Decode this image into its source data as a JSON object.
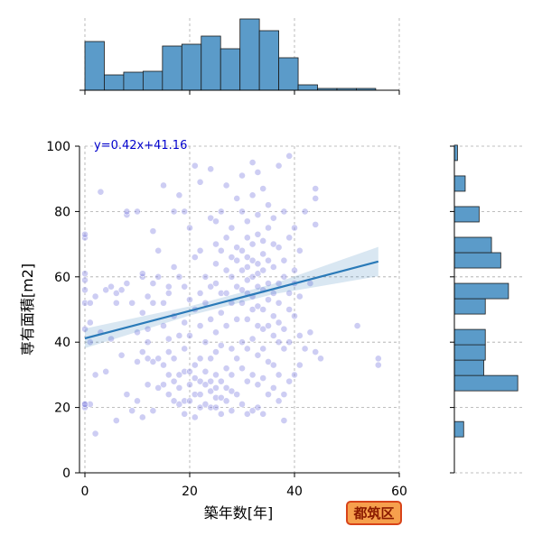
{
  "chart_data": {
    "type": "scatter",
    "subtype": "joint-plot-with-marginal-histograms-and-regression",
    "xlabel": "築年数[年]",
    "ylabel": "専有面積[m2]",
    "xlim": [
      0,
      60
    ],
    "ylim": [
      0,
      100
    ],
    "x_ticks": [
      0,
      20,
      40,
      60
    ],
    "y_ticks": [
      0,
      20,
      40,
      60,
      80,
      100
    ],
    "grid": true,
    "regression": {
      "slope": 0.42,
      "intercept": 41.16,
      "x_range": [
        0,
        56
      ],
      "label": "y=0.42x+41.16"
    },
    "badge": "都筑区",
    "scatter_color": "#7b7be0",
    "regression_color": "#2a7ab8",
    "hist_color": "#5b9bc9",
    "x_hist": {
      "bin_edges": [
        0,
        3.7,
        7.4,
        11.1,
        14.8,
        18.5,
        22.2,
        25.9,
        29.6,
        33.3,
        37.0,
        40.7,
        44.4,
        48.1,
        51.8,
        55.5
      ],
      "counts": [
        54,
        17,
        20,
        21,
        49,
        51,
        60,
        46,
        79,
        66,
        36,
        6,
        2,
        2,
        2
      ],
      "ylim": [
        0,
        80
      ]
    },
    "y_hist": {
      "bin_edges": [
        11,
        15.7,
        20.4,
        25.1,
        29.8,
        34.5,
        39.2,
        43.9,
        48.6,
        53.3,
        58.0,
        62.7,
        67.4,
        72.1,
        76.8,
        81.5,
        86.2,
        90.9,
        95.6,
        100.3
      ],
      "counts": [
        6,
        0,
        0,
        41,
        19,
        20,
        20,
        0,
        20,
        35,
        0,
        30,
        24,
        0,
        16,
        0,
        7,
        0,
        2
      ],
      "xlim": [
        0,
        45
      ]
    },
    "points": [
      [
        0,
        21
      ],
      [
        1,
        21
      ],
      [
        0,
        20
      ],
      [
        0,
        21
      ],
      [
        0,
        44
      ],
      [
        0,
        52
      ],
      [
        0,
        56
      ],
      [
        0,
        59
      ],
      [
        0,
        61
      ],
      [
        0,
        72
      ],
      [
        0,
        73
      ],
      [
        1,
        46
      ],
      [
        1,
        52
      ],
      [
        1,
        40
      ],
      [
        2,
        12
      ],
      [
        2,
        30
      ],
      [
        2,
        54
      ],
      [
        3,
        43
      ],
      [
        3,
        86
      ],
      [
        4,
        31
      ],
      [
        4,
        56
      ],
      [
        5,
        41
      ],
      [
        5,
        57
      ],
      [
        6,
        16
      ],
      [
        6,
        52
      ],
      [
        6,
        55
      ],
      [
        7,
        56
      ],
      [
        7,
        36
      ],
      [
        8,
        58
      ],
      [
        8,
        24
      ],
      [
        8,
        79
      ],
      [
        8,
        80
      ],
      [
        9,
        52
      ],
      [
        9,
        19
      ],
      [
        10,
        22
      ],
      [
        10,
        34
      ],
      [
        10,
        43
      ],
      [
        10,
        80
      ],
      [
        11,
        17
      ],
      [
        11,
        37
      ],
      [
        11,
        49
      ],
      [
        11,
        60
      ],
      [
        11,
        61
      ],
      [
        12,
        27
      ],
      [
        12,
        35
      ],
      [
        12,
        40
      ],
      [
        12,
        44
      ],
      [
        12,
        54
      ],
      [
        13,
        19
      ],
      [
        13,
        34
      ],
      [
        13,
        52
      ],
      [
        13,
        58
      ],
      [
        13,
        74
      ],
      [
        14,
        35
      ],
      [
        14,
        60
      ],
      [
        14,
        26
      ],
      [
        14,
        68
      ],
      [
        15,
        27
      ],
      [
        15,
        33
      ],
      [
        15,
        88
      ],
      [
        15,
        45
      ],
      [
        15,
        52
      ],
      [
        16,
        37
      ],
      [
        16,
        24
      ],
      [
        16,
        30
      ],
      [
        16,
        41
      ],
      [
        16,
        55
      ],
      [
        16,
        57
      ],
      [
        17,
        22
      ],
      [
        17,
        28
      ],
      [
        17,
        35
      ],
      [
        17,
        48
      ],
      [
        17,
        63
      ],
      [
        17,
        80
      ],
      [
        18,
        21
      ],
      [
        18,
        30
      ],
      [
        18,
        26
      ],
      [
        18,
        42
      ],
      [
        18,
        60
      ],
      [
        18,
        85
      ],
      [
        19,
        18
      ],
      [
        19,
        22
      ],
      [
        19,
        31
      ],
      [
        19,
        38
      ],
      [
        19,
        46
      ],
      [
        19,
        57
      ],
      [
        19,
        80
      ],
      [
        20,
        22
      ],
      [
        20,
        27
      ],
      [
        20,
        31
      ],
      [
        20,
        42
      ],
      [
        20,
        53
      ],
      [
        20,
        75
      ],
      [
        21,
        17
      ],
      [
        21,
        24
      ],
      [
        21,
        29
      ],
      [
        21,
        33
      ],
      [
        21,
        50
      ],
      [
        21,
        66
      ],
      [
        21,
        94
      ],
      [
        22,
        20
      ],
      [
        22,
        24
      ],
      [
        22,
        28
      ],
      [
        22,
        35
      ],
      [
        22,
        45
      ],
      [
        22,
        55
      ],
      [
        22,
        68
      ],
      [
        22,
        89
      ],
      [
        23,
        21
      ],
      [
        23,
        27
      ],
      [
        23,
        31
      ],
      [
        23,
        40
      ],
      [
        23,
        52
      ],
      [
        23,
        60
      ],
      [
        24,
        20
      ],
      [
        24,
        25
      ],
      [
        24,
        28
      ],
      [
        24,
        35
      ],
      [
        24,
        47
      ],
      [
        24,
        57
      ],
      [
        24,
        78
      ],
      [
        24,
        93
      ],
      [
        25,
        20
      ],
      [
        25,
        23
      ],
      [
        25,
        26
      ],
      [
        25,
        30
      ],
      [
        25,
        37
      ],
      [
        25,
        43
      ],
      [
        25,
        58
      ],
      [
        25,
        64
      ],
      [
        25,
        70
      ],
      [
        25,
        77
      ],
      [
        26,
        18
      ],
      [
        26,
        23
      ],
      [
        26,
        28
      ],
      [
        26,
        39
      ],
      [
        26,
        49
      ],
      [
        26,
        55
      ],
      [
        26,
        68
      ],
      [
        26,
        80
      ],
      [
        27,
        22
      ],
      [
        27,
        26
      ],
      [
        27,
        32
      ],
      [
        27,
        45
      ],
      [
        27,
        55
      ],
      [
        27,
        62
      ],
      [
        27,
        72
      ],
      [
        27,
        88
      ],
      [
        28,
        19
      ],
      [
        28,
        25
      ],
      [
        28,
        30
      ],
      [
        28,
        38
      ],
      [
        28,
        52
      ],
      [
        28,
        60
      ],
      [
        28,
        66
      ],
      [
        28,
        75
      ],
      [
        29,
        24
      ],
      [
        29,
        35
      ],
      [
        29,
        47
      ],
      [
        29,
        57
      ],
      [
        29,
        65
      ],
      [
        29,
        69
      ],
      [
        29,
        84
      ],
      [
        30,
        21
      ],
      [
        30,
        32
      ],
      [
        30,
        40
      ],
      [
        30,
        52
      ],
      [
        30,
        56
      ],
      [
        30,
        62
      ],
      [
        30,
        68
      ],
      [
        30,
        80
      ],
      [
        30,
        91
      ],
      [
        31,
        18
      ],
      [
        31,
        28
      ],
      [
        31,
        38
      ],
      [
        31,
        47
      ],
      [
        31,
        55
      ],
      [
        31,
        59
      ],
      [
        31,
        63
      ],
      [
        31,
        66
      ],
      [
        31,
        72
      ],
      [
        31,
        77
      ],
      [
        32,
        19
      ],
      [
        32,
        30
      ],
      [
        32,
        41
      ],
      [
        32,
        50
      ],
      [
        32,
        54
      ],
      [
        32,
        60
      ],
      [
        32,
        65
      ],
      [
        32,
        70
      ],
      [
        32,
        85
      ],
      [
        32,
        95
      ],
      [
        33,
        20
      ],
      [
        33,
        27
      ],
      [
        33,
        36
      ],
      [
        33,
        45
      ],
      [
        33,
        51
      ],
      [
        33,
        57
      ],
      [
        33,
        61
      ],
      [
        33,
        64
      ],
      [
        33,
        73
      ],
      [
        33,
        79
      ],
      [
        33,
        92
      ],
      [
        34,
        18
      ],
      [
        34,
        29
      ],
      [
        34,
        38
      ],
      [
        34,
        44
      ],
      [
        34,
        50
      ],
      [
        34,
        56
      ],
      [
        34,
        62
      ],
      [
        34,
        67
      ],
      [
        34,
        71
      ],
      [
        34,
        87
      ],
      [
        35,
        24
      ],
      [
        35,
        34
      ],
      [
        35,
        45
      ],
      [
        35,
        53
      ],
      [
        35,
        58
      ],
      [
        35,
        65
      ],
      [
        35,
        75
      ],
      [
        35,
        82
      ],
      [
        36,
        26
      ],
      [
        36,
        33
      ],
      [
        36,
        42
      ],
      [
        36,
        48
      ],
      [
        36,
        55
      ],
      [
        36,
        63
      ],
      [
        36,
        70
      ],
      [
        36,
        78
      ],
      [
        37,
        22
      ],
      [
        37,
        30
      ],
      [
        37,
        40
      ],
      [
        37,
        46
      ],
      [
        37,
        52
      ],
      [
        37,
        58
      ],
      [
        37,
        69
      ],
      [
        37,
        94
      ],
      [
        38,
        16
      ],
      [
        38,
        24
      ],
      [
        38,
        38
      ],
      [
        38,
        44
      ],
      [
        38,
        60
      ],
      [
        38,
        65
      ],
      [
        38,
        80
      ],
      [
        39,
        28
      ],
      [
        39,
        40
      ],
      [
        39,
        50
      ],
      [
        39,
        55
      ],
      [
        39,
        72
      ],
      [
        39,
        97
      ],
      [
        40,
        30
      ],
      [
        40,
        48
      ],
      [
        40,
        58
      ],
      [
        40,
        62
      ],
      [
        40,
        75
      ],
      [
        41,
        33
      ],
      [
        41,
        42
      ],
      [
        41,
        54
      ],
      [
        41,
        68
      ],
      [
        42,
        38
      ],
      [
        42,
        80
      ],
      [
        43,
        43
      ],
      [
        43,
        58
      ],
      [
        44,
        37
      ],
      [
        44,
        76
      ],
      [
        44,
        87
      ],
      [
        44,
        84
      ],
      [
        45,
        35
      ],
      [
        52,
        45
      ],
      [
        56,
        33
      ],
      [
        56,
        35
      ]
    ]
  }
}
